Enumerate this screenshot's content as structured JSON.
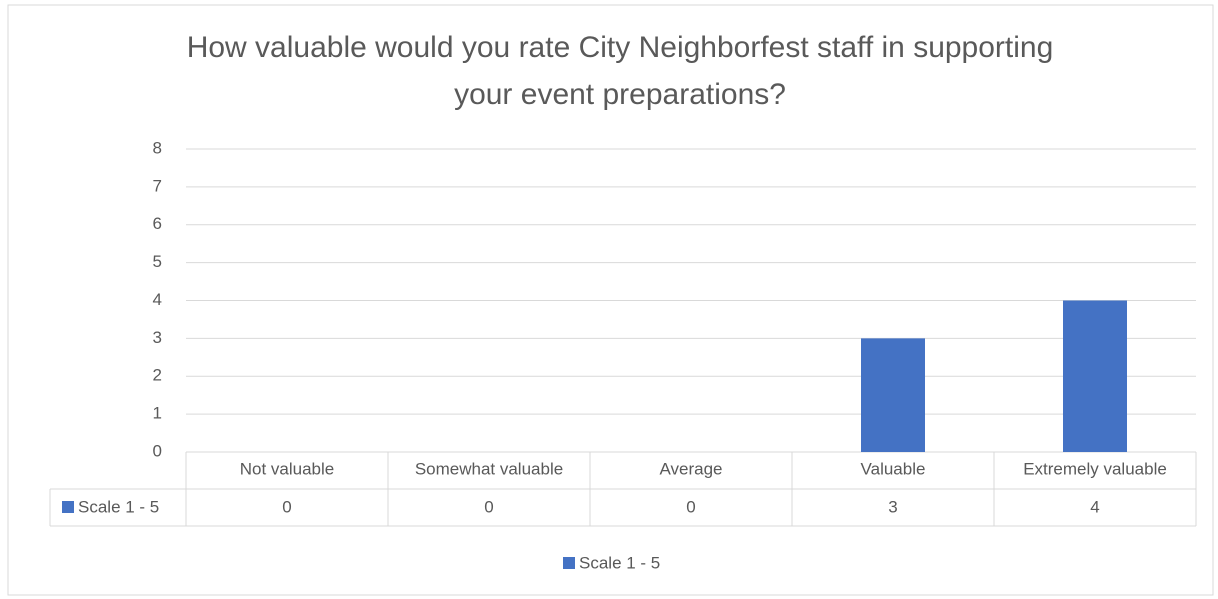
{
  "chart_data": {
    "type": "bar",
    "title": "How valuable would you rate City Neighborfest staff in supporting your event preparations?",
    "categories": [
      "Not valuable",
      "Somewhat valuable",
      "Average",
      "Valuable",
      "Extremely valuable"
    ],
    "series": [
      {
        "name": "Scale 1 - 5",
        "color": "#4472c4",
        "values": [
          0,
          0,
          0,
          3,
          4
        ]
      }
    ],
    "ylim": [
      0,
      8
    ],
    "yticks": [
      0,
      1,
      2,
      3,
      4,
      5,
      6,
      7,
      8
    ],
    "grid": true,
    "data_table": true,
    "legend": "bottom"
  }
}
